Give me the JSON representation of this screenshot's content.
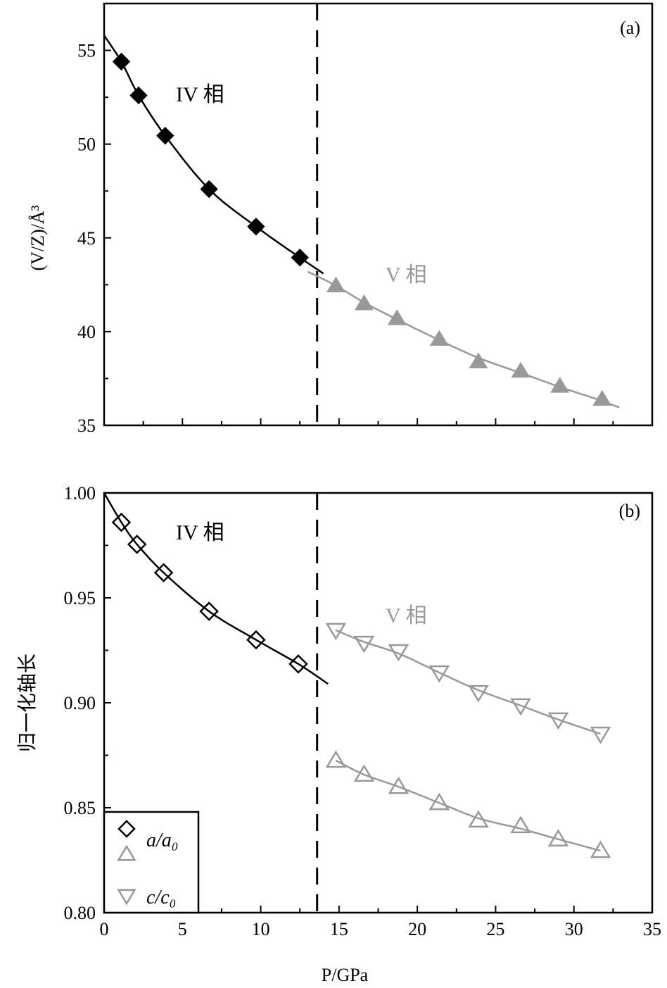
{
  "chart_data": [
    {
      "type": "scatter",
      "panel_label": "(a)",
      "xlabel": "",
      "ylabel": "(V/Z)/Å³",
      "xlim": [
        0,
        35
      ],
      "ylim": [
        35,
        57.5
      ],
      "xticks": [
        0,
        5,
        10,
        15,
        20,
        25,
        30,
        35
      ],
      "yticks": [
        35,
        40,
        45,
        50,
        55
      ],
      "ytick_labels": [
        "35",
        "40",
        "45",
        "50",
        "55"
      ],
      "grid": false,
      "phase_boundary_P": 13.6,
      "annotations": [
        {
          "text": "IV 相",
          "color": "#000000"
        },
        {
          "text": "V 相",
          "color": "#999999"
        }
      ],
      "series": [
        {
          "marker": "diamond-filled",
          "color": "#000000",
          "x": [
            1.1,
            2.2,
            3.9,
            6.7,
            9.7,
            12.5
          ],
          "y": [
            54.4,
            52.6,
            50.45,
            47.6,
            45.6,
            43.95
          ],
          "fit": {
            "x": [
              0,
              1.1,
              2.2,
              3.9,
              6.7,
              9.7,
              12.5,
              14.0
            ],
            "y": [
              55.8,
              54.4,
              52.6,
              50.45,
              47.6,
              45.6,
              43.95,
              43.1
            ]
          }
        },
        {
          "marker": "triangle-up-filled",
          "color": "#999999",
          "x": [
            14.8,
            16.6,
            18.7,
            21.4,
            23.9,
            26.6,
            29.1,
            31.8
          ],
          "y": [
            42.45,
            41.5,
            40.7,
            39.6,
            38.4,
            37.9,
            37.1,
            36.4
          ],
          "fit": {
            "x": [
              13.0,
              14.8,
              16.6,
              18.7,
              21.4,
              23.9,
              26.6,
              29.1,
              31.8,
              32.9
            ],
            "y": [
              43.2,
              42.45,
              41.55,
              40.65,
              39.55,
              38.6,
              37.8,
              37.05,
              36.3,
              35.95
            ]
          }
        }
      ]
    },
    {
      "type": "scatter",
      "panel_label": "(b)",
      "xlabel": "P/GPa",
      "ylabel": "归一化轴长",
      "xlim": [
        0,
        35
      ],
      "ylim": [
        0.8,
        1.0
      ],
      "xticks": [
        0,
        5,
        10,
        15,
        20,
        25,
        30,
        35
      ],
      "xtick_labels": [
        "0",
        "5",
        "10",
        "15",
        "20",
        "25",
        "30",
        "35"
      ],
      "yticks": [
        0.8,
        0.85,
        0.9,
        0.95,
        1.0
      ],
      "ytick_labels": [
        "0.80",
        "0.85",
        "0.90",
        "0.95",
        "1.00"
      ],
      "grid": false,
      "phase_boundary_P": 13.6,
      "legend_position": "bottom-left",
      "legend": [
        {
          "marker": "diamond-open",
          "color": "#000000",
          "label": "a/a₀"
        },
        {
          "marker": "triangle-up-open",
          "color": "#999999",
          "label": ""
        },
        {
          "marker": "triangle-down-open",
          "color": "#999999",
          "label": "c/c₀"
        }
      ],
      "annotations": [
        {
          "text": "IV 相",
          "color": "#000000"
        },
        {
          "text": "V 相",
          "color": "#999999"
        }
      ],
      "series": [
        {
          "name": "a/a₀",
          "marker": "diamond-open",
          "color": "#000000",
          "x": [
            1.1,
            2.1,
            3.8,
            6.7,
            9.7,
            12.4
          ],
          "y": [
            0.986,
            0.9755,
            0.962,
            0.9436,
            0.93,
            0.9185
          ],
          "fit": {
            "x": [
              0,
              1.1,
              2.1,
              3.8,
              6.7,
              9.7,
              12.4,
              14.3
            ],
            "y": [
              1.0,
              0.986,
              0.9755,
              0.962,
              0.9436,
              0.93,
              0.9185,
              0.909
            ]
          }
        },
        {
          "marker": "triangle-up-open",
          "color": "#999999",
          "x": [
            14.8,
            16.6,
            18.8,
            21.4,
            23.9,
            26.6,
            29.0,
            31.7
          ],
          "y": [
            0.8725,
            0.8658,
            0.86,
            0.8523,
            0.844,
            0.8413,
            0.835,
            0.8295
          ],
          "fit": {
            "x": [
              14.8,
              16.6,
              18.8,
              21.4,
              23.9,
              26.6,
              29.0,
              31.7
            ],
            "y": [
              0.8725,
              0.8658,
              0.86,
              0.8523,
              0.845,
              0.84,
              0.835,
              0.8295
            ]
          }
        },
        {
          "name": "c/c₀",
          "marker": "triangle-down-open",
          "color": "#999999",
          "x": [
            14.8,
            16.6,
            18.8,
            21.4,
            23.9,
            26.6,
            29.0,
            31.7
          ],
          "y": [
            0.9346,
            0.9285,
            0.9245,
            0.9144,
            0.905,
            0.8987,
            0.892,
            0.8852
          ],
          "fit": {
            "x": [
              14.8,
              16.6,
              18.8,
              21.4,
              23.9,
              26.6,
              29.0,
              31.7
            ],
            "y": [
              0.9346,
              0.929,
              0.9235,
              0.9144,
              0.906,
              0.8987,
              0.892,
              0.8852
            ]
          }
        }
      ]
    }
  ]
}
